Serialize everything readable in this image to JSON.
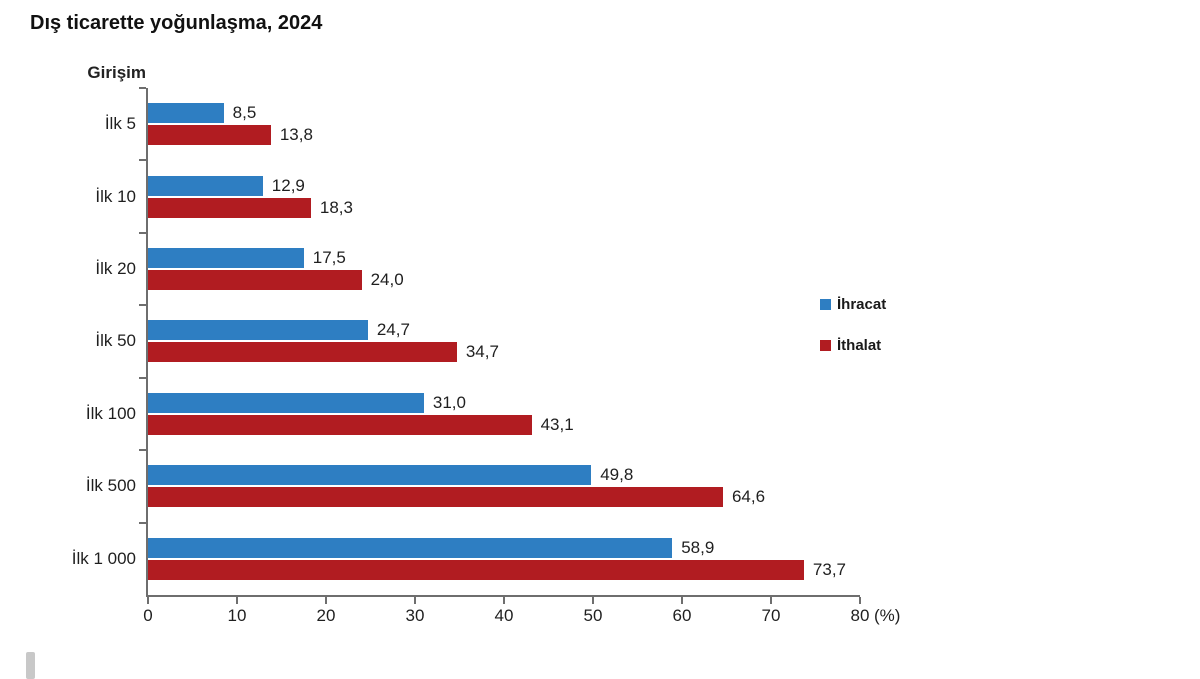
{
  "title": "Dış ticarette yoğunlaşma, 2024",
  "y_axis_title": "Girişim",
  "legend": [
    {
      "label": "İhracat",
      "color": "#2E7EC2"
    },
    {
      "label": "İthalat",
      "color": "#B11C21"
    }
  ],
  "colors": {
    "ihracat": "#2E7EC2",
    "ithalat": "#B11C21",
    "axis": "#6E6E6E",
    "text": "#1F1F1F"
  },
  "chart_data": {
    "type": "bar",
    "orientation": "horizontal",
    "title": "Dış ticarette yoğunlaşma, 2024",
    "categories": [
      "İlk 5",
      "İlk 10",
      "İlk 20",
      "İlk 50",
      "İlk 100",
      "İlk 500",
      "İlk 1 000"
    ],
    "series": [
      {
        "name": "İhracat",
        "color": "#2E7EC2",
        "values": [
          8.5,
          12.9,
          17.5,
          24.7,
          31.0,
          49.8,
          58.9
        ]
      },
      {
        "name": "İthalat",
        "color": "#B11C21",
        "values": [
          13.8,
          18.3,
          24.0,
          34.7,
          43.1,
          64.6,
          73.7
        ]
      }
    ],
    "value_label_format": "decimal-comma-1",
    "xlabel": "(%)",
    "ylabel": "Girişim",
    "xlim": [
      0,
      80
    ],
    "x_ticks": [
      0,
      10,
      20,
      30,
      40,
      50,
      60,
      70,
      80
    ],
    "grid": false,
    "legend_position": "right"
  }
}
